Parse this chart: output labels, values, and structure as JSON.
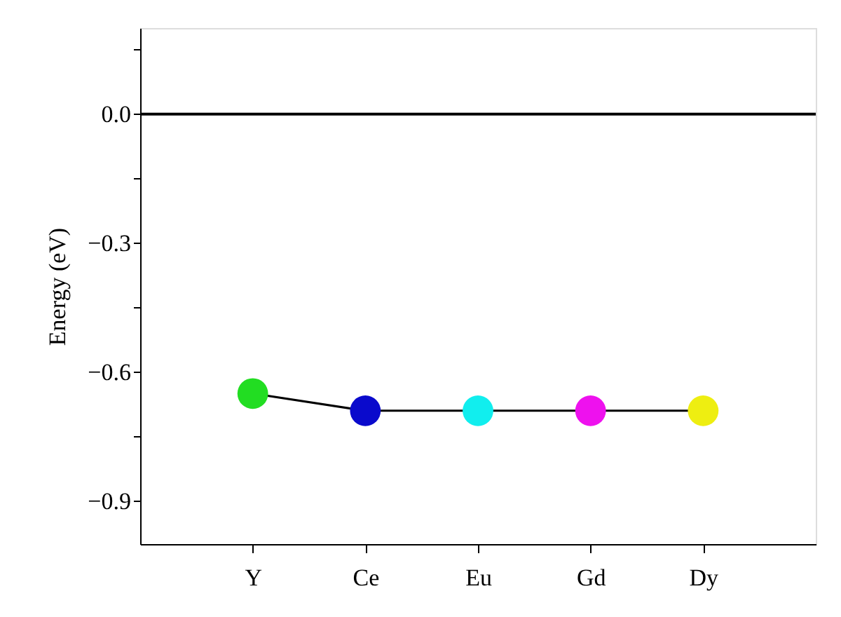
{
  "chart_data": {
    "type": "line",
    "ylabel": "Energy (eV)",
    "categories": [
      "Y",
      "Ce",
      "Eu",
      "Gd",
      "Dy"
    ],
    "series": [
      {
        "values": [
          -0.65,
          -0.69,
          -0.69,
          -0.69,
          -0.69
        ],
        "color": "#000000",
        "colors": [
          "#22dd22",
          "#0a0acc",
          "#11eeee",
          "#ee11ee",
          "#eeee11"
        ]
      }
    ],
    "ylim": [
      -1.0,
      0.2
    ],
    "yticks": [
      -0.9,
      {
        "value": -0.75,
        "label": null
      },
      -0.6,
      {
        "value": -0.45,
        "label": null
      },
      -0.3,
      {
        "value": -0.15,
        "label": null
      },
      {
        "value": 0.0,
        "label": "0.0"
      },
      {
        "value": 0.15,
        "label": null
      }
    ],
    "ref_lines": [
      {
        "axis": "y",
        "value": 0.0,
        "color": "#000000"
      }
    ],
    "marker": "circle",
    "line_style": "solid",
    "grid": false
  }
}
